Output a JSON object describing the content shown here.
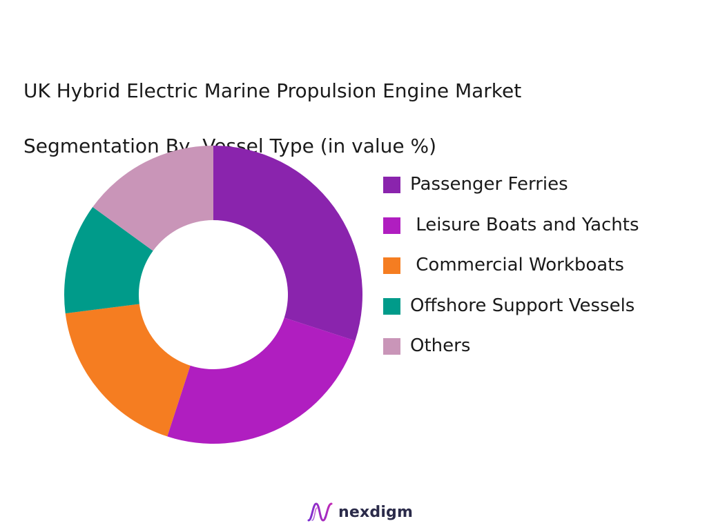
{
  "title_lines": [
    "UK Hybrid Electric Marine Propulsion Engine Market",
    "Segmentation By  Vessel Type (in value %)"
  ],
  "brand": {
    "name": "nexdigm",
    "logo_icon": "nexdigm-wave-logo-icon"
  },
  "chart_data": {
    "type": "pie",
    "variant": "donut",
    "title": "UK Hybrid Electric Marine Propulsion Engine Market Segmentation By  Vessel Type (in value %)",
    "legend_position": "right",
    "start_angle_deg": 0,
    "direction": "clockwise",
    "categories": [
      "Passenger Ferries",
      " Leisure Boats and Yachts",
      " Commercial Workboats",
      "Offshore Support Vessels",
      "Others"
    ],
    "values": [
      30,
      25,
      18,
      12,
      15
    ],
    "colors": [
      "#8a24ad",
      "#b01ec0",
      "#f57d21",
      "#009b8a",
      "#c995b8"
    ]
  }
}
